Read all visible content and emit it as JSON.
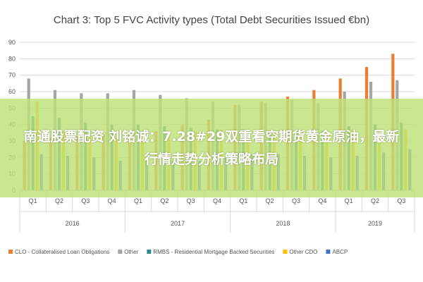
{
  "chart_data": {
    "type": "bar",
    "title": "Chart 3: Top 5 FVC Activity types (Total Debt Securities Issued €bn)",
    "xlabel": "",
    "ylabel": "",
    "ylim": [
      0,
      90
    ],
    "yticks": [
      0,
      10,
      20,
      30,
      40,
      50,
      60,
      70,
      80,
      90
    ],
    "grid": true,
    "legend_position": "bottom",
    "categories": [
      "Q1",
      "Q2",
      "Q3",
      "Q4",
      "Q1",
      "Q2",
      "Q3",
      "Q4",
      "Q1",
      "Q2",
      "Q3",
      "Q4",
      "Q1",
      "Q2",
      "Q3"
    ],
    "year_groups": [
      {
        "label": "2016",
        "count": 4
      },
      {
        "label": "2017",
        "count": 4
      },
      {
        "label": "2018",
        "count": 4
      },
      {
        "label": "2019",
        "count": 3
      }
    ],
    "series": [
      {
        "name": "CLO - Collateralised Loan Obligations",
        "color": "#ed7d31",
        "values": [
          30,
          32,
          33,
          34,
          34,
          36,
          40,
          43,
          52,
          54,
          57,
          61,
          68,
          75,
          83
        ]
      },
      {
        "name": "Other",
        "color": "#a5a5a5",
        "values": [
          68,
          61,
          59,
          59,
          61,
          58,
          56,
          54,
          52,
          53,
          55,
          53,
          60,
          66,
          67
        ]
      },
      {
        "name": "RMBS - Residential Mortgage Backed Securities",
        "color": "#2e8b8b",
        "values": [
          45,
          44,
          41,
          40,
          40,
          39,
          38,
          37,
          37,
          36,
          36,
          36,
          39,
          40,
          41
        ]
      },
      {
        "name": "Other CDO",
        "color": "#ffc000",
        "values": [
          54,
          36,
          34,
          32,
          34,
          36,
          36,
          37,
          36,
          35,
          36,
          36,
          37,
          37,
          37
        ]
      },
      {
        "name": "ABCP",
        "color": "#4472c4",
        "values": [
          22,
          21,
          20,
          18,
          18,
          18,
          18,
          20,
          22,
          22,
          21,
          20,
          21,
          23,
          25
        ]
      }
    ]
  },
  "overlay": {
    "banner_text": "南通股票配资 刘铭诚：7.28#29双重看空期货黄金原油，最新行情走势分析策略布局"
  }
}
